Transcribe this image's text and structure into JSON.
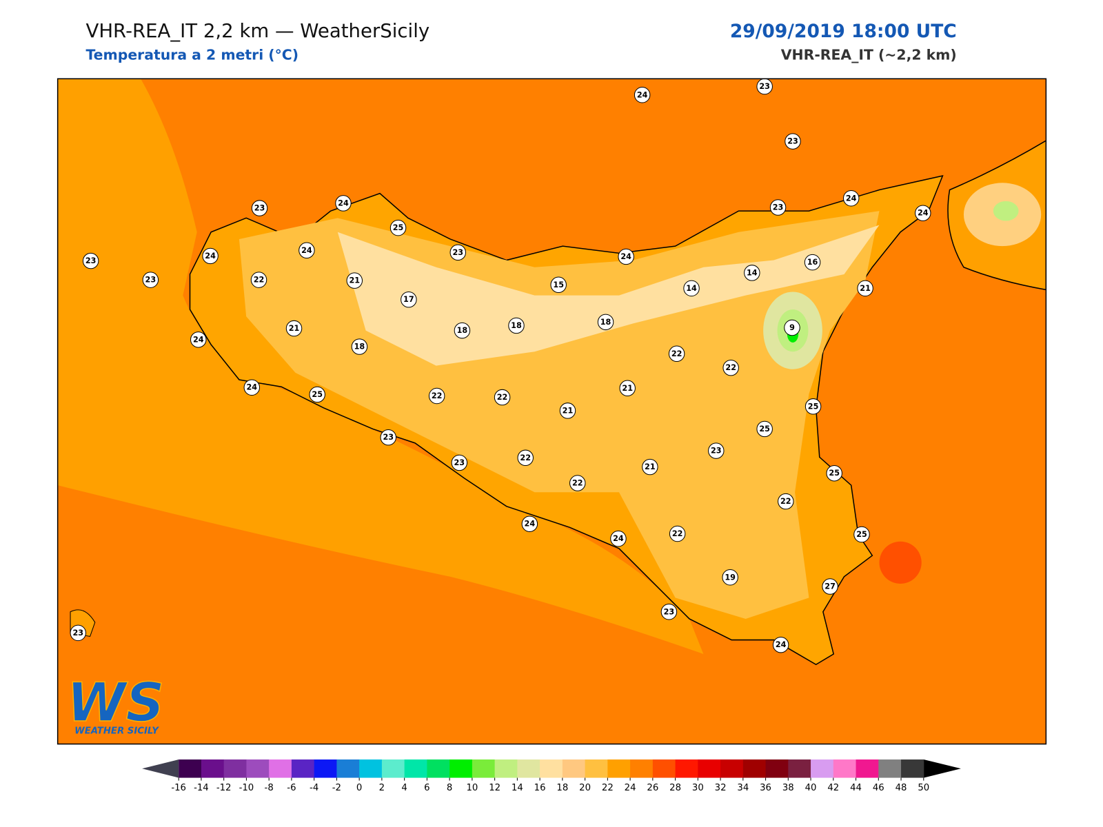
{
  "header": {
    "title": "VHR-REA_IT 2,2 km — WeatherSicily",
    "subtitle": "Temperatura a 2 metri (°C)",
    "date": "29/09/2019 18:00 UTC",
    "model": "VHR-REA_IT (~2,2 km)"
  },
  "logo": {
    "text": "WS",
    "subtext": "WEATHER SICILY"
  },
  "stations": [
    24,
    23,
    23,
    23,
    24,
    25,
    24,
    24,
    23,
    23,
    22,
    21,
    17,
    23,
    21,
    24,
    18,
    18,
    18,
    15,
    18,
    24,
    14,
    14,
    16,
    23,
    24,
    24,
    21,
    9,
    22,
    22,
    21,
    24,
    25,
    22,
    22,
    21,
    23,
    23,
    22,
    22,
    21,
    23,
    25,
    25,
    25,
    22,
    25,
    24,
    24,
    22,
    19,
    27,
    23,
    24,
    23
  ],
  "colorbar": {
    "ticks": [
      -16,
      -14,
      -12,
      -10,
      -8,
      -6,
      -4,
      -2,
      0,
      2,
      4,
      6,
      8,
      10,
      12,
      14,
      16,
      18,
      20,
      22,
      24,
      26,
      28,
      30,
      32,
      34,
      36,
      38,
      40,
      42,
      44,
      46,
      48,
      50
    ],
    "colors": [
      "#3d0050",
      "#6a0f8c",
      "#7f2fa0",
      "#9d4cbd",
      "#e070e6",
      "#5a24c4",
      "#0c18f5",
      "#1a7ed6",
      "#00c2e0",
      "#5ceccd",
      "#00e6a8",
      "#00e060",
      "#00ee00",
      "#7aec3a",
      "#c0ef80",
      "#e0e6a0",
      "#ffe0a0",
      "#ffc880",
      "#ffc040",
      "#ffa000",
      "#ff8000",
      "#ff5000",
      "#ff1800",
      "#e80000",
      "#c80000",
      "#a00000",
      "#800010",
      "#7a2040",
      "#d89cf0",
      "#ff78c8",
      "#f01890",
      "#808080",
      "#383838"
    ],
    "under_color": "#404050",
    "over_color": "#000000"
  }
}
